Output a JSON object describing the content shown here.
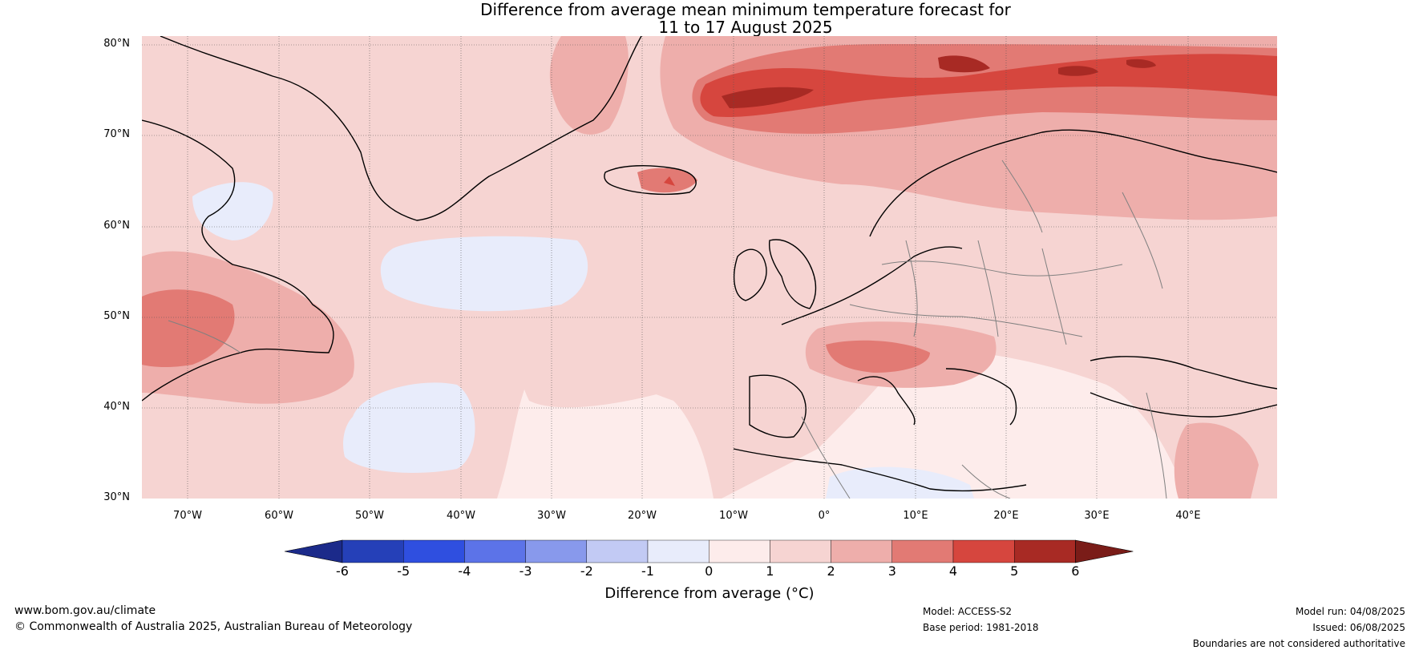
{
  "title_line1": "Difference from average mean minimum temperature forecast for",
  "title_line2": "11 to 17 August 2025",
  "lat_labels": [
    "80°N",
    "70°N",
    "60°N",
    "50°N",
    "40°N",
    "30°N"
  ],
  "lon_labels": [
    "70°W",
    "60°W",
    "50°W",
    "40°W",
    "30°W",
    "20°W",
    "10°W",
    "0°",
    "10°E",
    "20°E",
    "30°E",
    "40°E"
  ],
  "colorbar": {
    "title": "Difference from average (°C)",
    "ticks": [
      "-6",
      "-5",
      "-4",
      "-3",
      "-2",
      "-1",
      "0",
      "1",
      "2",
      "3",
      "4",
      "5",
      "6"
    ],
    "colors": [
      "#1b2a8a",
      "#2540b8",
      "#2f4fe0",
      "#5c73e8",
      "#8899ec",
      "#c2caf4",
      "#e8ecfb",
      "#fdeceb",
      "#f6d4d2",
      "#eeaeab",
      "#e27a74",
      "#d6463e",
      "#a82a24",
      "#7a1c18"
    ]
  },
  "footer": {
    "website": "www.bom.gov.au/climate",
    "copyright": "© Commonwealth of Australia 2025, Australian Bureau of Meteorology",
    "model": "Model: ACCESS-S2",
    "base_period": "Base period: 1981-2018",
    "model_run": "Model run: 04/08/2025",
    "issued": "Issued: 06/08/2025",
    "disclaimer": "Boundaries are not considered authoritative"
  }
}
